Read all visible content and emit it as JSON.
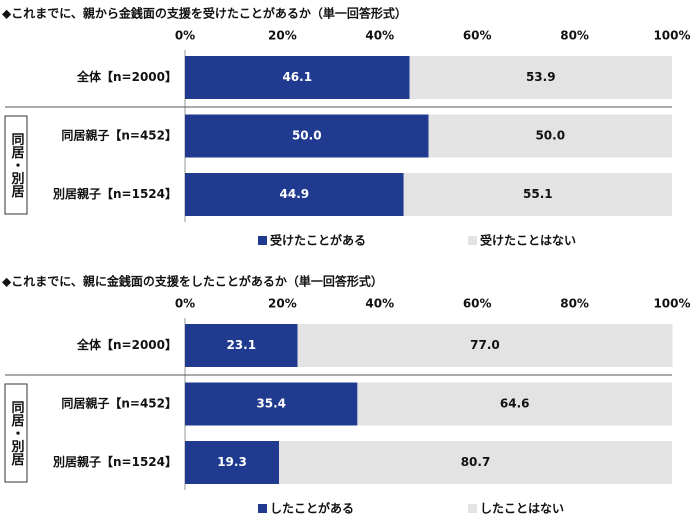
{
  "chart_data": [
    {
      "type": "bar",
      "orientation": "horizontal",
      "stacked": true,
      "title": "◆これまでに、親から金銭面の支援を受けたことがあるか（単一回答形式）",
      "categories": [
        "全体【n=2000】",
        "同居親子【n=452】",
        "別居親子【n=1524】"
      ],
      "group_label": "同居・別居",
      "series": [
        {
          "name": "受けたことがある",
          "color": "#1f3a8f",
          "values": [
            46.1,
            50.0,
            44.9
          ],
          "value_labels": [
            "46.1",
            "50.0",
            "44.9"
          ]
        },
        {
          "name": "受けたことはない",
          "color": "#e3e3e3",
          "values": [
            53.9,
            50.0,
            55.1
          ],
          "value_labels": [
            "53.9",
            "50.0",
            "55.1"
          ]
        }
      ],
      "xlim": [
        0,
        100
      ],
      "xticks": [
        {
          "value": 0,
          "label": "0%"
        },
        {
          "value": 20,
          "label": "20%"
        },
        {
          "value": 40,
          "label": "40%"
        },
        {
          "value": 60,
          "label": "60%"
        },
        {
          "value": 80,
          "label": "80%"
        },
        {
          "value": 100,
          "label": "100%"
        }
      ],
      "grid": false,
      "legend": "bottom"
    },
    {
      "type": "bar",
      "orientation": "horizontal",
      "stacked": true,
      "title": "◆これまでに、親に金銭面の支援をしたことがあるか（単一回答形式）",
      "categories": [
        "全体【n=2000】",
        "同居親子【n=452】",
        "別居親子【n=1524】"
      ],
      "group_label": "同居・別居",
      "series": [
        {
          "name": "したことがある",
          "color": "#1f3a8f",
          "values": [
            23.1,
            35.4,
            19.3
          ],
          "value_labels": [
            "23.1",
            "35.4",
            "19.3"
          ]
        },
        {
          "name": "したことはない",
          "color": "#e3e3e3",
          "values": [
            77.0,
            64.6,
            80.7
          ],
          "value_labels": [
            "77.0",
            "64.6",
            "80.7"
          ]
        }
      ],
      "xlim": [
        0,
        100
      ],
      "xticks": [
        {
          "value": 0,
          "label": "0%"
        },
        {
          "value": 20,
          "label": "20%"
        },
        {
          "value": 40,
          "label": "40%"
        },
        {
          "value": 60,
          "label": "60%"
        },
        {
          "value": 80,
          "label": "80%"
        },
        {
          "value": 100,
          "label": "100%"
        }
      ],
      "grid": false,
      "legend": "bottom"
    }
  ]
}
